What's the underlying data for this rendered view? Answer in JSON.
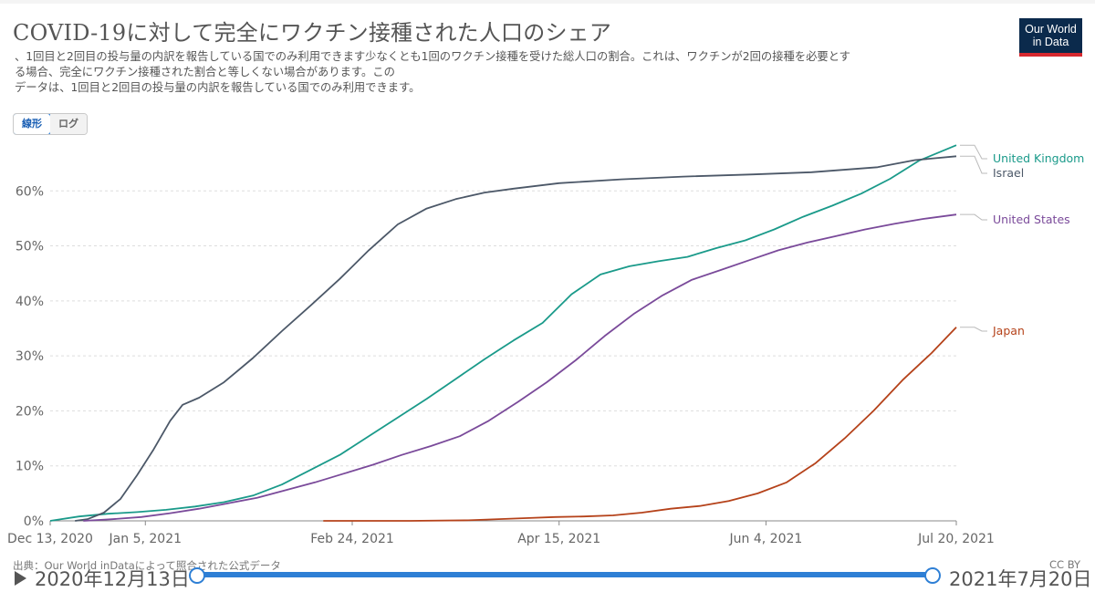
{
  "header": {
    "title": "COVID-19に対して完全にワクチン接種された人口のシェア",
    "subtitle_lines": [
      "、1回目と2回目の投与量の内訳を報告している国でのみ利用できます少なくとも1回のワクチン接種を受けた総人口の割合。これは、ワクチンが2回の接種を必要とす",
      "る場合、完全にワクチン接種された割合と等しくない場合があります。この",
      "データは、1回目と2回目の投与量の内訳を報告している国でのみ利用できます。"
    ]
  },
  "logo": {
    "line1": "Our World",
    "line2": "in Data"
  },
  "controls": {
    "linear_label": "線形",
    "log_label": "ログ",
    "active": "linear"
  },
  "footer": {
    "source": "出典：Our World inDataによって照合された公式データ",
    "license": "CC BY"
  },
  "timeline": {
    "start_date": "2020年12月13日",
    "end_date": "2021年7月20日"
  },
  "colors": {
    "united_kingdom": "#1a9a8a",
    "israel": "#4c5868",
    "united_states": "#7a4a9a",
    "japan": "#b5421a",
    "grid": "#dddddd",
    "slider": "#2e7fd5"
  },
  "chart_data": {
    "type": "line",
    "title": "COVID-19に対して完全にワクチン接種された人口のシェア",
    "xlabel": "",
    "ylabel": "",
    "x_ticks": [
      "Dec 13, 2020",
      "Jan 5, 2021",
      "Feb 24, 2021",
      "Apr 15, 2021",
      "Jun 4, 2021",
      "Jul 20, 2021"
    ],
    "x_tick_positions": [
      "2020-12-13",
      "2021-01-05",
      "2021-02-24",
      "2021-04-15",
      "2021-06-04",
      "2021-07-20"
    ],
    "y_ticks": [
      "0%",
      "10%",
      "20%",
      "30%",
      "40%",
      "50%",
      "60%"
    ],
    "y_tick_values": [
      0,
      10,
      20,
      30,
      40,
      50,
      60
    ],
    "xlim": [
      "2020-12-13",
      "2021-07-20"
    ],
    "ylim": [
      0,
      69
    ],
    "grid": "horizontal",
    "legend": "inline labels at line ends (right)",
    "series": [
      {
        "name": "United Kingdom",
        "color_key": "united_kingdom",
        "points": [
          [
            "2020-12-13",
            0.0
          ],
          [
            "2020-12-20",
            0.8
          ],
          [
            "2020-12-27",
            1.3
          ],
          [
            "2021-01-03",
            1.6
          ],
          [
            "2021-01-10",
            2.0
          ],
          [
            "2021-01-17",
            2.6
          ],
          [
            "2021-01-24",
            3.4
          ],
          [
            "2021-01-31",
            4.6
          ],
          [
            "2021-02-07",
            6.6
          ],
          [
            "2021-02-14",
            9.3
          ],
          [
            "2021-02-21",
            12.0
          ],
          [
            "2021-02-28",
            15.4
          ],
          [
            "2021-03-07",
            18.8
          ],
          [
            "2021-03-14",
            22.2
          ],
          [
            "2021-03-21",
            25.8
          ],
          [
            "2021-03-28",
            29.4
          ],
          [
            "2021-04-04",
            32.8
          ],
          [
            "2021-04-11",
            36.0
          ],
          [
            "2021-04-18",
            41.2
          ],
          [
            "2021-04-25",
            44.8
          ],
          [
            "2021-05-02",
            46.3
          ],
          [
            "2021-05-09",
            47.2
          ],
          [
            "2021-05-16",
            48.0
          ],
          [
            "2021-05-23",
            49.6
          ],
          [
            "2021-05-30",
            51.0
          ],
          [
            "2021-06-06",
            53.0
          ],
          [
            "2021-06-13",
            55.3
          ],
          [
            "2021-06-20",
            57.3
          ],
          [
            "2021-06-27",
            59.5
          ],
          [
            "2021-07-04",
            62.2
          ],
          [
            "2021-07-11",
            65.5
          ],
          [
            "2021-07-20",
            68.3
          ]
        ]
      },
      {
        "name": "Israel",
        "color_key": "israel",
        "points": [
          [
            "2020-12-19",
            0.0
          ],
          [
            "2020-12-22",
            0.3
          ],
          [
            "2020-12-26",
            1.5
          ],
          [
            "2020-12-30",
            4.0
          ],
          [
            "2021-01-03",
            8.3
          ],
          [
            "2021-01-07",
            13.0
          ],
          [
            "2021-01-11",
            18.2
          ],
          [
            "2021-01-14",
            21.1
          ],
          [
            "2021-01-18",
            22.4
          ],
          [
            "2021-01-24",
            25.2
          ],
          [
            "2021-01-31",
            29.6
          ],
          [
            "2021-02-07",
            34.5
          ],
          [
            "2021-02-14",
            39.2
          ],
          [
            "2021-02-21",
            44.0
          ],
          [
            "2021-02-28",
            49.2
          ],
          [
            "2021-03-07",
            53.9
          ],
          [
            "2021-03-14",
            56.8
          ],
          [
            "2021-03-21",
            58.5
          ],
          [
            "2021-03-28",
            59.7
          ],
          [
            "2021-04-04",
            60.4
          ],
          [
            "2021-04-15",
            61.4
          ],
          [
            "2021-04-30",
            62.1
          ],
          [
            "2021-05-15",
            62.6
          ],
          [
            "2021-06-01",
            63.0
          ],
          [
            "2021-06-15",
            63.4
          ],
          [
            "2021-07-01",
            64.3
          ],
          [
            "2021-07-10",
            65.6
          ],
          [
            "2021-07-20",
            66.3
          ]
        ]
      },
      {
        "name": "United States",
        "color_key": "united_states",
        "points": [
          [
            "2020-12-21",
            0.0
          ],
          [
            "2020-12-28",
            0.3
          ],
          [
            "2021-01-04",
            0.7
          ],
          [
            "2021-01-11",
            1.4
          ],
          [
            "2021-01-18",
            2.2
          ],
          [
            "2021-01-25",
            3.2
          ],
          [
            "2021-02-01",
            4.2
          ],
          [
            "2021-02-08",
            5.6
          ],
          [
            "2021-02-15",
            7.0
          ],
          [
            "2021-02-22",
            8.6
          ],
          [
            "2021-03-01",
            10.2
          ],
          [
            "2021-03-08",
            12.0
          ],
          [
            "2021-03-15",
            13.6
          ],
          [
            "2021-03-22",
            15.4
          ],
          [
            "2021-03-29",
            18.2
          ],
          [
            "2021-04-05",
            21.6
          ],
          [
            "2021-04-12",
            25.2
          ],
          [
            "2021-04-19",
            29.2
          ],
          [
            "2021-04-26",
            33.6
          ],
          [
            "2021-05-03",
            37.6
          ],
          [
            "2021-05-10",
            41.0
          ],
          [
            "2021-05-17",
            43.8
          ],
          [
            "2021-05-24",
            45.6
          ],
          [
            "2021-05-31",
            47.4
          ],
          [
            "2021-06-07",
            49.2
          ],
          [
            "2021-06-14",
            50.6
          ],
          [
            "2021-06-21",
            51.8
          ],
          [
            "2021-06-28",
            53.0
          ],
          [
            "2021-07-05",
            54.0
          ],
          [
            "2021-07-12",
            54.9
          ],
          [
            "2021-07-20",
            55.7
          ]
        ]
      },
      {
        "name": "Japan",
        "color_key": "japan",
        "points": [
          [
            "2021-02-17",
            0.0
          ],
          [
            "2021-03-10",
            0.0
          ],
          [
            "2021-03-24",
            0.1
          ],
          [
            "2021-04-07",
            0.5
          ],
          [
            "2021-04-14",
            0.7
          ],
          [
            "2021-04-21",
            0.8
          ],
          [
            "2021-04-28",
            1.0
          ],
          [
            "2021-05-05",
            1.5
          ],
          [
            "2021-05-12",
            2.2
          ],
          [
            "2021-05-19",
            2.7
          ],
          [
            "2021-05-26",
            3.6
          ],
          [
            "2021-06-02",
            5.0
          ],
          [
            "2021-06-09",
            7.0
          ],
          [
            "2021-06-16",
            10.5
          ],
          [
            "2021-06-23",
            15.0
          ],
          [
            "2021-06-30",
            20.0
          ],
          [
            "2021-07-07",
            25.6
          ],
          [
            "2021-07-14",
            30.5
          ],
          [
            "2021-07-20",
            35.2
          ]
        ]
      }
    ]
  }
}
